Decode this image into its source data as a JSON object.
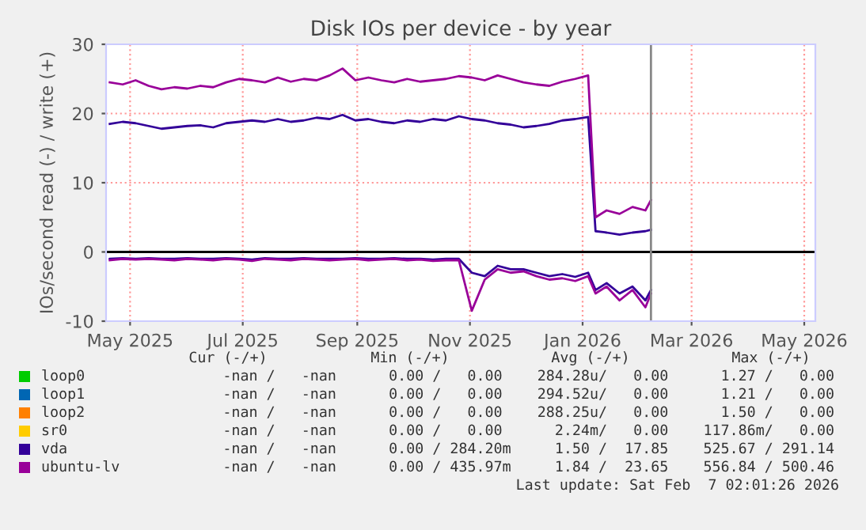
{
  "chart_data": {
    "type": "line",
    "title": "Disk IOs per device - by year",
    "ylabel": "IOs/second read (-) / write (+)",
    "x": [
      "2025-04-20",
      "2025-04-27",
      "2025-05-04",
      "2025-05-11",
      "2025-05-18",
      "2025-05-25",
      "2025-06-01",
      "2025-06-08",
      "2025-06-15",
      "2025-06-22",
      "2025-06-29",
      "2025-07-06",
      "2025-07-13",
      "2025-07-20",
      "2025-07-27",
      "2025-08-03",
      "2025-08-10",
      "2025-08-17",
      "2025-08-24",
      "2025-08-31",
      "2025-09-07",
      "2025-09-14",
      "2025-09-21",
      "2025-09-28",
      "2025-10-05",
      "2025-10-12",
      "2025-10-19",
      "2025-10-26",
      "2025-11-02",
      "2025-11-09",
      "2025-11-16",
      "2025-11-23",
      "2025-11-30",
      "2025-12-07",
      "2025-12-14",
      "2025-12-21",
      "2025-12-28",
      "2026-01-04",
      "2026-01-08",
      "2026-01-14",
      "2026-01-21",
      "2026-01-28",
      "2026-02-04",
      "2026-02-07"
    ],
    "series": [
      {
        "name": "loop0",
        "color": "#00cc00",
        "values": [
          null,
          null,
          null,
          null,
          null,
          null,
          null,
          null,
          null,
          null,
          null,
          null,
          null,
          null,
          null,
          null,
          null,
          null,
          null,
          null,
          null,
          null,
          null,
          null,
          null,
          null,
          null,
          null,
          null,
          null,
          null,
          null,
          null,
          null,
          null,
          null,
          null,
          null,
          null,
          null,
          null,
          null,
          null,
          null
        ]
      },
      {
        "name": "loop1",
        "color": "#0066b3",
        "values": [
          null,
          null,
          null,
          null,
          null,
          null,
          null,
          null,
          null,
          null,
          null,
          null,
          null,
          null,
          null,
          null,
          null,
          null,
          null,
          null,
          null,
          null,
          null,
          null,
          null,
          null,
          null,
          null,
          null,
          null,
          null,
          null,
          null,
          null,
          null,
          null,
          null,
          null,
          null,
          null,
          null,
          null,
          null,
          null
        ]
      },
      {
        "name": "loop2",
        "color": "#ff8000",
        "values": [
          null,
          null,
          null,
          null,
          null,
          null,
          null,
          null,
          null,
          null,
          null,
          null,
          null,
          null,
          null,
          null,
          null,
          null,
          null,
          null,
          null,
          null,
          null,
          null,
          null,
          null,
          null,
          null,
          null,
          null,
          null,
          null,
          null,
          null,
          null,
          null,
          null,
          null,
          null,
          null,
          null,
          null,
          null,
          null
        ]
      },
      {
        "name": "sr0",
        "color": "#ffcc00",
        "values": [
          null,
          null,
          null,
          null,
          null,
          null,
          null,
          null,
          null,
          null,
          null,
          null,
          null,
          null,
          null,
          null,
          null,
          null,
          null,
          null,
          null,
          null,
          null,
          null,
          null,
          null,
          null,
          null,
          null,
          null,
          null,
          null,
          null,
          null,
          null,
          null,
          null,
          null,
          null,
          null,
          null,
          null,
          null,
          null
        ]
      },
      {
        "name": "vda",
        "color": "#330099",
        "values": [
          18.5,
          18.8,
          18.6,
          18.2,
          17.8,
          18.0,
          18.2,
          18.3,
          18.0,
          18.6,
          18.8,
          19.0,
          18.8,
          19.2,
          18.8,
          19.0,
          19.4,
          19.2,
          19.8,
          19.0,
          19.2,
          18.8,
          18.6,
          19.0,
          18.8,
          19.2,
          19.0,
          19.6,
          19.2,
          19.0,
          18.6,
          18.4,
          18.0,
          18.2,
          18.5,
          19.0,
          19.2,
          19.5,
          3.0,
          2.8,
          2.5,
          2.8,
          3.0,
          3.2
        ]
      },
      {
        "name": "ubuntu-lv",
        "color": "#990099",
        "values": [
          24.5,
          24.2,
          24.8,
          24.0,
          23.5,
          23.8,
          23.6,
          24.0,
          23.8,
          24.5,
          25.0,
          24.8,
          24.5,
          25.2,
          24.6,
          25.0,
          24.8,
          25.5,
          26.5,
          24.8,
          25.2,
          24.8,
          24.5,
          25.0,
          24.6,
          24.8,
          25.0,
          25.4,
          25.2,
          24.8,
          25.5,
          25.0,
          24.5,
          24.2,
          24.0,
          24.6,
          25.0,
          25.5,
          5.0,
          6.0,
          5.5,
          6.5,
          6.0,
          7.5
        ]
      },
      {
        "color": "#330099",
        "values": [
          -1.0,
          -0.9,
          -1.0,
          -0.9,
          -1.0,
          -1.0,
          -0.9,
          -1.0,
          -1.0,
          -0.9,
          -1.0,
          -1.1,
          -0.9,
          -1.0,
          -1.0,
          -0.9,
          -1.0,
          -1.0,
          -1.0,
          -0.9,
          -1.0,
          -1.0,
          -0.9,
          -1.0,
          -1.0,
          -1.1,
          -1.0,
          -1.0,
          -3.0,
          -3.5,
          -2.0,
          -2.5,
          -2.5,
          -3.0,
          -3.5,
          -3.2,
          -3.6,
          -3.0,
          -5.5,
          -4.5,
          -6.0,
          -5.0,
          -7.0,
          -5.5
        ]
      },
      {
        "color": "#990099",
        "values": [
          -1.2,
          -1.0,
          -1.1,
          -1.0,
          -1.1,
          -1.2,
          -1.0,
          -1.1,
          -1.2,
          -1.0,
          -1.1,
          -1.3,
          -1.0,
          -1.1,
          -1.2,
          -1.0,
          -1.1,
          -1.2,
          -1.1,
          -1.0,
          -1.2,
          -1.1,
          -1.0,
          -1.2,
          -1.1,
          -1.3,
          -1.2,
          -1.2,
          -8.5,
          -4.0,
          -2.5,
          -3.0,
          -2.8,
          -3.5,
          -4.0,
          -3.8,
          -4.2,
          -3.5,
          -6.0,
          -5.0,
          -7.0,
          -5.5,
          -8.0,
          -6.0
        ]
      }
    ],
    "xlim": [
      "2025-04-18",
      "2026-05-07"
    ],
    "xticks": [
      {
        "value": "2025-05-01",
        "label": "May 2025"
      },
      {
        "value": "2025-07-01",
        "label": "Jul 2025"
      },
      {
        "value": "2025-09-01",
        "label": "Sep 2025"
      },
      {
        "value": "2025-11-01",
        "label": "Nov 2025"
      },
      {
        "value": "2026-01-01",
        "label": "Jan 2026"
      },
      {
        "value": "2026-03-01",
        "label": "Mar 2026"
      },
      {
        "value": "2026-05-01",
        "label": "May 2026"
      }
    ],
    "ylim": [
      -10,
      30
    ],
    "yticks": [
      -10,
      0,
      10,
      20,
      30
    ],
    "grid": true,
    "legend": "bottom",
    "line_style": "solid",
    "marker": "none",
    "ref_lines": [
      {
        "axis": "y",
        "value": 0,
        "color": "#000000"
      },
      {
        "axis": "x",
        "value": "2026-02-07",
        "color": "#888888"
      }
    ],
    "annotations": [
      "Cur (-/+)",
      "Min (-/+)",
      "Avg (-/+)",
      "Max (-/+)",
      "-nan /   -nan      0.00 /   0.00    284.28u/   0.00      1.27 /   0.00",
      "-nan /   -nan      0.00 /   0.00    294.52u/   0.00      1.21 /   0.00",
      "-nan /   -nan      0.00 /   0.00    288.25u/   0.00      1.50 /   0.00",
      "-nan /   -nan      0.00 /   0.00      2.24m/   0.00    117.86m/   0.00",
      "-nan /   -nan      0.00 / 284.20m     1.50 /  17.85    525.67 / 291.14",
      "-nan /   -nan      0.00 / 435.97m     1.84 /  23.65    556.84 / 500.46",
      "Last update: Sat Feb  7 02:01:26 2026"
    ]
  }
}
